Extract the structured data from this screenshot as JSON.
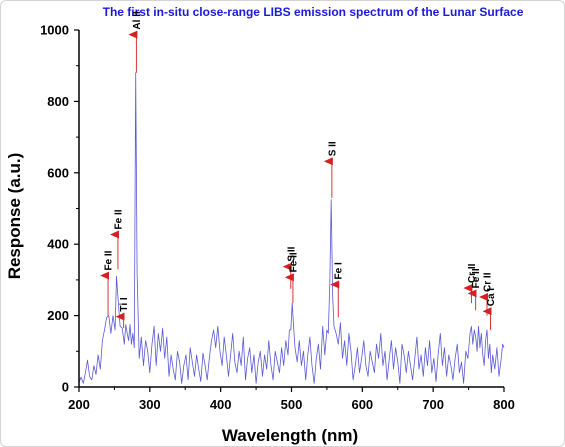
{
  "chart_data": {
    "type": "line",
    "title": "The first in-situ close-range LIBS emission spectrum of the Lunar Surface",
    "xlabel": "Wavelength (nm)",
    "ylabel": "Response (a.u.)",
    "xlim": [
      200,
      800
    ],
    "ylim": [
      0,
      1000
    ],
    "xticks": [
      200,
      300,
      400,
      500,
      600,
      700,
      800
    ],
    "yticks": [
      0,
      200,
      400,
      600,
      800,
      1000
    ],
    "grid": false,
    "colors": {
      "title": "#1a1adc",
      "line": "#5a5ad2",
      "arrow": "#d42020",
      "axis": "#000000"
    },
    "series": [
      {
        "points": [
          [
            200,
            12
          ],
          [
            203,
            28
          ],
          [
            206,
            10
          ],
          [
            209,
            40
          ],
          [
            212,
            75
          ],
          [
            215,
            30
          ],
          [
            218,
            20
          ],
          [
            221,
            60
          ],
          [
            224,
            35
          ],
          [
            227,
            90
          ],
          [
            230,
            50
          ],
          [
            233,
            130
          ],
          [
            236,
            160
          ],
          [
            239,
            195
          ],
          [
            242,
            200
          ],
          [
            245,
            150
          ],
          [
            248,
            200
          ],
          [
            251,
            160
          ],
          [
            253,
            310
          ],
          [
            255,
            250
          ],
          [
            258,
            170
          ],
          [
            261,
            165
          ],
          [
            264,
            120
          ],
          [
            266,
            175
          ],
          [
            268,
            150
          ],
          [
            270,
            130
          ],
          [
            272,
            175
          ],
          [
            274,
            120
          ],
          [
            276,
            150
          ],
          [
            278,
            110
          ],
          [
            280,
            880
          ],
          [
            282,
            320
          ],
          [
            285,
            80
          ],
          [
            288,
            140
          ],
          [
            291,
            60
          ],
          [
            294,
            130
          ],
          [
            297,
            100
          ],
          [
            300,
            40
          ],
          [
            303,
            120
          ],
          [
            306,
            170
          ],
          [
            309,
            60
          ],
          [
            312,
            150
          ],
          [
            315,
            100
          ],
          [
            318,
            165
          ],
          [
            321,
            80
          ],
          [
            324,
            140
          ],
          [
            327,
            30
          ],
          [
            330,
            90
          ],
          [
            333,
            50
          ],
          [
            336,
            20
          ],
          [
            339,
            100
          ],
          [
            342,
            70
          ],
          [
            345,
            10
          ],
          [
            348,
            60
          ],
          [
            351,
            90
          ],
          [
            354,
            20
          ],
          [
            357,
            110
          ],
          [
            360,
            70
          ],
          [
            363,
            30
          ],
          [
            366,
            90
          ],
          [
            369,
            50
          ],
          [
            372,
            15
          ],
          [
            375,
            95
          ],
          [
            378,
            60
          ],
          [
            381,
            20
          ],
          [
            384,
            80
          ],
          [
            387,
            130
          ],
          [
            390,
            160
          ],
          [
            393,
            110
          ],
          [
            396,
            170
          ],
          [
            399,
            100
          ],
          [
            402,
            60
          ],
          [
            405,
            140
          ],
          [
            408,
            90
          ],
          [
            411,
            30
          ],
          [
            414,
            90
          ],
          [
            417,
            150
          ],
          [
            420,
            70
          ],
          [
            423,
            40
          ],
          [
            426,
            100
          ],
          [
            429,
            60
          ],
          [
            432,
            140
          ],
          [
            435,
            20
          ],
          [
            438,
            80
          ],
          [
            441,
            110
          ],
          [
            444,
            40
          ],
          [
            447,
            90
          ],
          [
            450,
            10
          ],
          [
            453,
            70
          ],
          [
            456,
            100
          ],
          [
            459,
            30
          ],
          [
            462,
            90
          ],
          [
            465,
            50
          ],
          [
            468,
            130
          ],
          [
            471,
            60
          ],
          [
            474,
            20
          ],
          [
            477,
            100
          ],
          [
            480,
            70
          ],
          [
            483,
            40
          ],
          [
            486,
            110
          ],
          [
            489,
            60
          ],
          [
            492,
            130
          ],
          [
            495,
            90
          ],
          [
            497,
            160
          ],
          [
            499,
            160
          ],
          [
            501,
            235
          ],
          [
            503,
            170
          ],
          [
            505,
            110
          ],
          [
            508,
            70
          ],
          [
            511,
            130
          ],
          [
            514,
            60
          ],
          [
            517,
            100
          ],
          [
            520,
            20
          ],
          [
            523,
            90
          ],
          [
            526,
            140
          ],
          [
            529,
            60
          ],
          [
            532,
            10
          ],
          [
            535,
            80
          ],
          [
            538,
            120
          ],
          [
            541,
            50
          ],
          [
            544,
            170
          ],
          [
            547,
            90
          ],
          [
            550,
            160
          ],
          [
            552,
            150
          ],
          [
            554,
            290
          ],
          [
            556,
            525
          ],
          [
            558,
            260
          ],
          [
            560,
            170
          ],
          [
            563,
            150
          ],
          [
            566,
            120
          ],
          [
            569,
            180
          ],
          [
            572,
            80
          ],
          [
            575,
            130
          ],
          [
            578,
            60
          ],
          [
            581,
            150
          ],
          [
            584,
            100
          ],
          [
            587,
            20
          ],
          [
            590,
            60
          ],
          [
            593,
            110
          ],
          [
            596,
            40
          ],
          [
            599,
            80
          ],
          [
            602,
            130
          ],
          [
            605,
            60
          ],
          [
            608,
            30
          ],
          [
            611,
            100
          ],
          [
            614,
            70
          ],
          [
            617,
            40
          ],
          [
            620,
            120
          ],
          [
            623,
            80
          ],
          [
            626,
            150
          ],
          [
            629,
            60
          ],
          [
            632,
            100
          ],
          [
            635,
            20
          ],
          [
            638,
            80
          ],
          [
            641,
            130
          ],
          [
            644,
            50
          ],
          [
            647,
            110
          ],
          [
            650,
            70
          ],
          [
            653,
            10
          ],
          [
            656,
            120
          ],
          [
            659,
            90
          ],
          [
            662,
            40
          ],
          [
            665,
            100
          ],
          [
            668,
            60
          ],
          [
            671,
            20
          ],
          [
            674,
            80
          ],
          [
            677,
            140
          ],
          [
            680,
            50
          ],
          [
            683,
            90
          ],
          [
            686,
            30
          ],
          [
            689,
            110
          ],
          [
            692,
            60
          ],
          [
            695,
            130
          ],
          [
            698,
            40
          ],
          [
            701,
            80
          ],
          [
            704,
            15
          ],
          [
            707,
            90
          ],
          [
            710,
            150
          ],
          [
            713,
            60
          ],
          [
            716,
            110
          ],
          [
            719,
            30
          ],
          [
            722,
            90
          ],
          [
            725,
            60
          ],
          [
            728,
            20
          ],
          [
            731,
            80
          ],
          [
            734,
            120
          ],
          [
            737,
            40
          ],
          [
            740,
            70
          ],
          [
            743,
            10
          ],
          [
            746,
            100
          ],
          [
            749,
            80
          ],
          [
            752,
            150
          ],
          [
            754,
            170
          ],
          [
            756,
            120
          ],
          [
            758,
            160
          ],
          [
            760,
            140
          ],
          [
            762,
            100
          ],
          [
            764,
            170
          ],
          [
            766,
            110
          ],
          [
            768,
            150
          ],
          [
            770,
            90
          ],
          [
            772,
            60
          ],
          [
            774,
            130
          ],
          [
            776,
            160
          ],
          [
            778,
            80
          ],
          [
            780,
            120
          ],
          [
            782,
            40
          ],
          [
            784,
            90
          ],
          [
            787,
            50
          ],
          [
            790,
            110
          ],
          [
            793,
            30
          ],
          [
            796,
            80
          ],
          [
            798,
            120
          ],
          [
            800,
            110
          ]
        ]
      }
    ],
    "annotations": [
      {
        "label": "Fe II",
        "x": 241,
        "y_start": 200,
        "y_tip": 315
      },
      {
        "label": "Fe II",
        "x": 255,
        "y_start": 330,
        "y_tip": 430
      },
      {
        "label": "Ti I",
        "x": 263,
        "y_start": 165,
        "y_tip": 200
      },
      {
        "label": "Al II",
        "x": 281,
        "y_start": 880,
        "y_tip": 990
      },
      {
        "label": "S II",
        "x": 499,
        "y_start": 275,
        "y_tip": 340
      },
      {
        "label": "Fe II",
        "x": 502,
        "y_start": 235,
        "y_tip": 310
      },
      {
        "label": "S II",
        "x": 557,
        "y_start": 530,
        "y_tip": 635
      },
      {
        "label": "Fe I",
        "x": 566,
        "y_start": 195,
        "y_tip": 290
      },
      {
        "label": "Cr II",
        "x": 754,
        "y_start": 235,
        "y_tip": 280
      },
      {
        "label": "Fe II",
        "x": 760,
        "y_start": 215,
        "y_tip": 265
      },
      {
        "label": "Cr II",
        "x": 776,
        "y_start": 200,
        "y_tip": 255
      },
      {
        "label": "Ca I",
        "x": 781,
        "y_start": 160,
        "y_tip": 215
      }
    ]
  }
}
